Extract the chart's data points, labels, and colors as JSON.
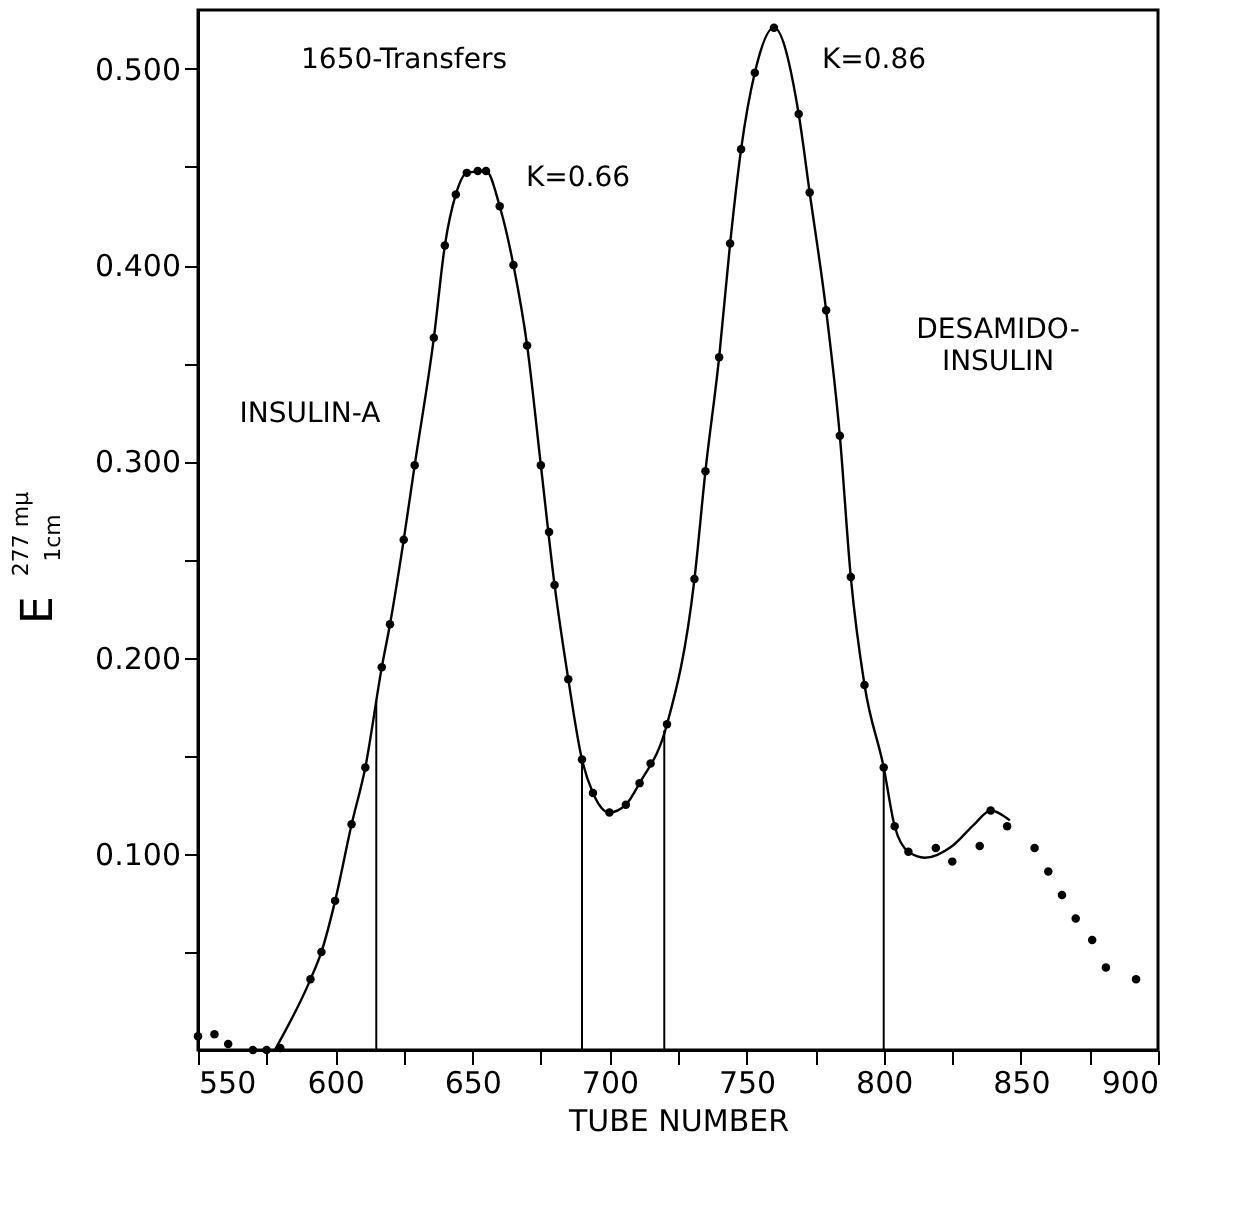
{
  "chart_data": {
    "type": "scatter",
    "xlabel": "TUBE NUMBER",
    "ylabel": "E$^{277 mμ}$$_{1cm}$",
    "xlim": [
      550,
      900
    ],
    "ylim": [
      0,
      0.53
    ],
    "xticks": [
      550,
      {
        "value": 575,
        "label": null
      },
      600,
      {
        "value": 625,
        "label": null
      },
      650,
      {
        "value": 675,
        "label": null
      },
      700,
      {
        "value": 725,
        "label": null
      },
      750,
      {
        "value": 775,
        "label": null
      },
      800,
      {
        "value": 825,
        "label": null
      },
      850,
      {
        "value": 875,
        "label": null
      },
      900
    ],
    "yticks": [
      {
        "value": 0.05,
        "label": null
      },
      {
        "value": 0.1,
        "label": "0.100"
      },
      {
        "value": 0.15,
        "label": null
      },
      {
        "value": 0.2,
        "label": "0.200"
      },
      {
        "value": 0.25,
        "label": null
      },
      {
        "value": 0.3,
        "label": "0.300"
      },
      {
        "value": 0.35,
        "label": null
      },
      {
        "value": 0.4,
        "label": "0.400"
      },
      {
        "value": 0.45,
        "label": null
      },
      {
        "value": 0.5,
        "label": "0.500"
      }
    ],
    "grid": false,
    "legend": false,
    "series": [
      {
        "marker": "circle",
        "color": "#000000",
        "x": [
          550,
          556,
          561,
          570,
          575,
          580,
          591,
          595,
          600,
          606,
          611,
          617,
          620,
          625,
          629,
          636,
          640,
          644,
          648,
          652,
          655,
          660,
          665,
          670,
          675,
          678,
          680,
          685,
          690,
          694,
          700,
          706,
          711,
          715,
          721,
          731,
          735,
          740,
          744,
          748,
          753,
          760,
          769,
          773,
          779,
          784,
          788,
          793,
          800,
          804,
          809,
          819,
          825,
          835,
          839,
          845,
          855,
          860,
          865,
          870,
          876,
          881,
          892
        ],
        "values": [
          0.007,
          0.008,
          0.003,
          0.0,
          0.0,
          0.001,
          0.036,
          0.05,
          0.076,
          0.115,
          0.144,
          0.195,
          0.217,
          0.26,
          0.298,
          0.363,
          0.41,
          0.436,
          0.447,
          0.448,
          0.448,
          0.43,
          0.4,
          0.359,
          0.298,
          0.264,
          0.237,
          0.189,
          0.148,
          0.131,
          0.121,
          0.125,
          0.136,
          0.146,
          0.166,
          0.24,
          0.295,
          0.353,
          0.411,
          0.459,
          0.498,
          0.521,
          0.477,
          0.437,
          0.377,
          0.313,
          0.241,
          0.186,
          0.144,
          0.114,
          0.101,
          0.103,
          0.096,
          0.104,
          0.122,
          0.114,
          0.103,
          0.091,
          0.079,
          0.067,
          0.056,
          0.042,
          0.036
        ]
      },
      {
        "type": "line",
        "color": "#000000",
        "line_style": "solid",
        "x": [
          578,
          591,
          595,
          600,
          606,
          611,
          617,
          620,
          625,
          629,
          636,
          640,
          644,
          648,
          655,
          660,
          665,
          670,
          675,
          680,
          685,
          690,
          694,
          700,
          706,
          711,
          721,
          731,
          735,
          740,
          744,
          748,
          753,
          760,
          769,
          773,
          779,
          784,
          788,
          793,
          800,
          804,
          809,
          815,
          825,
          833,
          839,
          846
        ],
        "values": [
          0.0,
          0.036,
          0.05,
          0.076,
          0.115,
          0.144,
          0.195,
          0.217,
          0.26,
          0.298,
          0.363,
          0.41,
          0.436,
          0.447,
          0.448,
          0.43,
          0.4,
          0.359,
          0.298,
          0.237,
          0.189,
          0.148,
          0.131,
          0.121,
          0.125,
          0.136,
          0.166,
          0.24,
          0.295,
          0.353,
          0.411,
          0.459,
          0.498,
          0.521,
          0.477,
          0.437,
          0.377,
          0.313,
          0.241,
          0.186,
          0.144,
          0.114,
          0.101,
          0.098,
          0.104,
          0.115,
          0.122,
          0.117
        ]
      }
    ],
    "ref_lines": [
      {
        "axis": "x",
        "value": 615
      },
      {
        "axis": "x",
        "value": 690
      },
      {
        "axis": "x",
        "value": 720
      },
      {
        "axis": "x",
        "value": 800
      }
    ],
    "annotations": [
      "1650-Transfers",
      "K=0.66",
      "K=0.86",
      "INSULIN-A",
      "DESAMIDO-\nINSULIN"
    ]
  }
}
